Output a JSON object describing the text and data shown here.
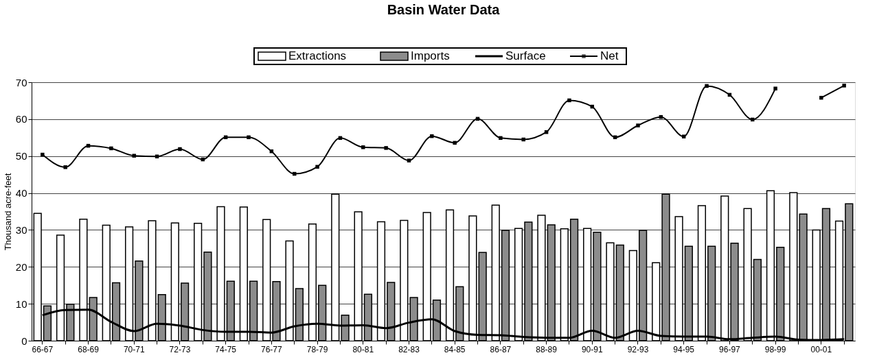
{
  "chart_data": {
    "type": "bar",
    "title": "Basin Water Data",
    "ylabel": "Thousand acre-feet",
    "categories": [
      "66-67",
      null,
      "68-69",
      null,
      "70-71",
      null,
      "72-73",
      null,
      "74-75",
      null,
      "76-77",
      null,
      "78-79",
      null,
      "80-81",
      null,
      "82-83",
      null,
      "84-85",
      null,
      "86-87",
      null,
      "88-89",
      null,
      "90-91",
      null,
      "92-93",
      null,
      "94-95",
      null,
      "96-97",
      null,
      "98-99",
      null,
      "00-01",
      null
    ],
    "series": [
      {
        "name": "Extractions",
        "color": "#ffffff",
        "values": [
          34.5,
          28.6,
          32.9,
          31.3,
          30.8,
          32.5,
          31.9,
          31.8,
          36.3,
          36.2,
          32.8,
          27.0,
          31.6,
          39.7,
          34.9,
          32.2,
          32.6,
          34.7,
          35.4,
          33.8,
          36.7,
          30.4,
          34.0,
          30.3,
          30.4,
          26.5,
          24.4,
          21.1,
          33.6,
          36.6,
          39.2,
          35.8,
          40.6,
          40.1,
          30.0,
          32.4
        ]
      },
      {
        "name": "Imports",
        "color": "#8c8c8c",
        "values": [
          9.4,
          9.9,
          11.7,
          15.7,
          21.6,
          12.5,
          15.6,
          24.0,
          16.1,
          16.1,
          16.0,
          14.1,
          15.0,
          6.9,
          12.6,
          15.8,
          11.7,
          11.0,
          14.6,
          23.9,
          29.9,
          32.1,
          31.4,
          32.9,
          29.4,
          25.9,
          29.9,
          39.7,
          25.6,
          25.6,
          26.4,
          22.0,
          25.3,
          34.3,
          35.8,
          37.1
        ]
      },
      {
        "name": "Surface",
        "type": "line",
        "color": "#000000",
        "marker": "none",
        "values": [
          6.9,
          8.3,
          8.4,
          5.1,
          2.6,
          4.6,
          4.1,
          2.9,
          2.4,
          2.4,
          2.2,
          3.9,
          4.6,
          4.1,
          4.2,
          3.4,
          4.9,
          5.8,
          2.6,
          1.6,
          1.5,
          1.0,
          0.8,
          0.8,
          2.7,
          0.8,
          2.7,
          1.3,
          1.1,
          1.1,
          0.4,
          0.8,
          1.1,
          0.3,
          0.2,
          0.4
        ]
      },
      {
        "name": "Net",
        "type": "line",
        "color": "#000000",
        "marker": "square",
        "values": [
          50.4,
          47.0,
          52.8,
          52.1,
          50.1,
          49.9,
          51.9,
          49.1,
          55.1,
          55.1,
          51.3,
          45.2,
          47.1,
          54.9,
          52.4,
          52.2,
          48.8,
          55.4,
          53.6,
          60.1,
          54.9,
          54.5,
          56.5,
          65.1,
          63.4,
          55.1,
          58.3,
          60.6,
          55.3,
          69.0,
          66.6,
          59.9,
          68.3,
          null,
          65.8,
          69.1
        ]
      }
    ],
    "ylim": [
      0,
      70
    ],
    "yticks": [
      0,
      10,
      20,
      30,
      40,
      50,
      60,
      70
    ],
    "grid": "y",
    "legend": "top"
  }
}
